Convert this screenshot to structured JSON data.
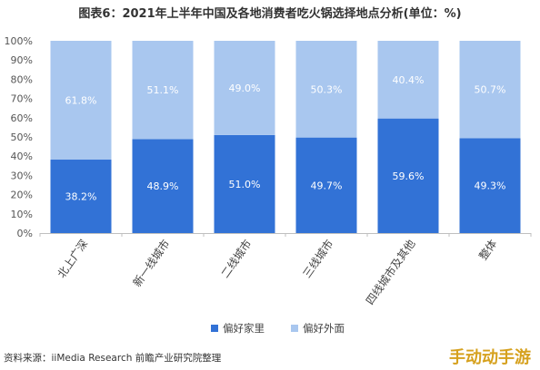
{
  "chart_data": {
    "type": "bar",
    "stacked": true,
    "title": "图表6：2021年上半年中国及各地消费者吃火锅选择地点分析(单位：%)",
    "categories": [
      "北上广深",
      "新一线城市",
      "二线城市",
      "三线城市",
      "四线城市及其他",
      "整体"
    ],
    "series": [
      {
        "name": "偏好家里",
        "color": "#3272d6",
        "values": [
          38.2,
          48.9,
          51.0,
          49.7,
          59.6,
          49.3
        ]
      },
      {
        "name": "偏好外面",
        "color": "#a9c7ef",
        "values": [
          61.8,
          51.1,
          49.0,
          50.3,
          40.4,
          50.7
        ]
      }
    ],
    "value_labels": [
      [
        "38.2%",
        "48.9%",
        "51.0%",
        "49.7%",
        "59.6%",
        "49.3%"
      ],
      [
        "61.8%",
        "51.1%",
        "49.0%",
        "50.3%",
        "40.4%",
        "50.7%"
      ]
    ],
    "ylim": [
      0,
      100
    ],
    "yticks": [
      "0%",
      "10%",
      "20%",
      "30%",
      "40%",
      "50%",
      "60%",
      "70%",
      "80%",
      "90%",
      "100%"
    ],
    "legend_position": "bottom",
    "grid": false,
    "source": "资料来源：iiMedia Research 前瞻产业研究院整理"
  }
}
